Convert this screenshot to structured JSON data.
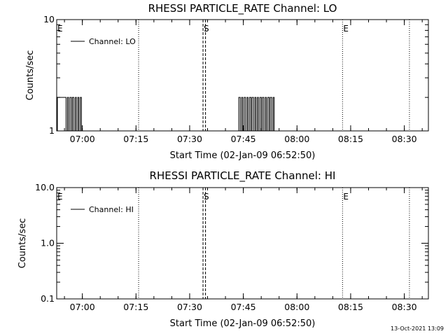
{
  "footer": {
    "timestamp": "13-Oct-2021 13:09"
  },
  "chart_data": [
    {
      "type": "line",
      "title": "RHESSI PARTICLE_RATE Channel: LO",
      "xlabel": "Start Time (02-Jan-09 06:52:50)",
      "ylabel": "Counts/sec",
      "x_tick_labels": [
        "07:00",
        "07:15",
        "07:30",
        "07:45",
        "08:00",
        "08:15",
        "08:30"
      ],
      "x_ticks_min": [
        7.17,
        22.17,
        37.17,
        52.17,
        67.17,
        82.17,
        97.17
      ],
      "xlim": [
        0,
        103.9
      ],
      "y_scale": "log",
      "ylim": [
        1,
        10
      ],
      "y_tick_labels": [
        "1",
        "10"
      ],
      "y_ticks": [
        1,
        10
      ],
      "legend": {
        "label": "Channel: LO",
        "position": "top-left"
      },
      "event_markers": [
        {
          "label": "E",
          "t_min": 0.0,
          "style": "dotted"
        },
        {
          "label": "",
          "t_min": 22.9,
          "style": "dotted"
        },
        {
          "label": "S",
          "t_min": 40.9,
          "style": "dashed"
        },
        {
          "label": "",
          "t_min": 41.6,
          "style": "dashed"
        },
        {
          "label": "E",
          "t_min": 79.9,
          "style": "dotted"
        },
        {
          "label": "",
          "t_min": 98.6,
          "style": "dotted"
        }
      ],
      "series": [
        {
          "name": "Channel: LO",
          "x_min": [
            0.2,
            0.2,
            0.9,
            0.9,
            1.4,
            1.4,
            1.9,
            1.9,
            2.3,
            2.3,
            2.6,
            2.6,
            3.0,
            3.0,
            3.3,
            3.3,
            3.7,
            3.7,
            4.1,
            4.1,
            4.4,
            4.4,
            4.8,
            4.8,
            5.2,
            5.2,
            5.5,
            5.5,
            5.9,
            5.9,
            6.2,
            6.2,
            6.6,
            6.6,
            6.9,
            6.9,
            7.2,
            7.2,
            50.9,
            50.9,
            51.3,
            51.3,
            51.7,
            51.7,
            52.0,
            52.0,
            52.4,
            52.4,
            52.8,
            52.8,
            53.2,
            53.2,
            53.5,
            53.5,
            53.9,
            53.9,
            54.3,
            54.3,
            54.6,
            54.6,
            55.0,
            55.0,
            55.4,
            55.4,
            55.7,
            55.7,
            56.1,
            56.1,
            56.4,
            56.4,
            56.8,
            56.8,
            57.2,
            57.2,
            57.5,
            57.5,
            57.9,
            57.9,
            58.3,
            58.3,
            58.6,
            58.6,
            59.0,
            59.0,
            59.4,
            59.4,
            59.7,
            59.7,
            60.1,
            60.1,
            60.5,
            60.5,
            60.8,
            60.8,
            61.2,
            61.2
          ],
          "y": [
            1,
            2,
            2,
            2,
            2,
            2,
            2,
            2,
            2,
            2,
            2,
            1,
            1,
            2,
            2,
            1,
            1,
            2,
            2,
            1,
            1,
            2,
            2,
            1,
            1,
            2,
            2,
            1,
            1,
            2,
            2,
            1,
            1,
            2,
            2,
            1,
            1,
            1,
            1,
            2,
            2,
            1,
            1,
            2,
            2,
            1,
            1,
            2,
            2,
            1,
            1,
            2,
            2,
            1,
            1,
            2,
            2,
            1,
            1,
            2,
            2,
            1,
            1,
            2,
            2,
            1,
            1,
            2,
            2,
            1,
            1,
            2,
            2,
            1,
            1,
            2,
            2,
            1,
            1,
            2,
            2,
            1,
            1,
            2,
            2,
            1,
            1,
            2,
            2,
            1,
            1,
            2,
            2,
            1,
            1,
            1
          ]
        }
      ]
    },
    {
      "type": "line",
      "title": "RHESSI PARTICLE_RATE Channel: HI",
      "xlabel": "Start Time (02-Jan-09 06:52:50)",
      "ylabel": "Counts/sec",
      "x_tick_labels": [
        "07:00",
        "07:15",
        "07:30",
        "07:45",
        "08:00",
        "08:15",
        "08:30"
      ],
      "x_ticks_min": [
        7.17,
        22.17,
        37.17,
        52.17,
        67.17,
        82.17,
        97.17
      ],
      "xlim": [
        0,
        103.9
      ],
      "y_scale": "log",
      "ylim": [
        0.1,
        10
      ],
      "y_tick_labels": [
        "0.1",
        "1.0",
        "10.0"
      ],
      "y_ticks": [
        0.1,
        1,
        10
      ],
      "legend": {
        "label": "Channel: HI",
        "position": "top-left"
      },
      "event_markers": [
        {
          "label": "E",
          "t_min": 0.0,
          "style": "dotted"
        },
        {
          "label": "",
          "t_min": 22.9,
          "style": "dotted"
        },
        {
          "label": "S",
          "t_min": 40.9,
          "style": "dashed"
        },
        {
          "label": "",
          "t_min": 41.6,
          "style": "dashed"
        },
        {
          "label": "E",
          "t_min": 79.9,
          "style": "dotted"
        },
        {
          "label": "",
          "t_min": 98.6,
          "style": "dotted"
        }
      ],
      "series": [
        {
          "name": "Channel: HI",
          "x_min": [],
          "y": []
        }
      ]
    }
  ]
}
